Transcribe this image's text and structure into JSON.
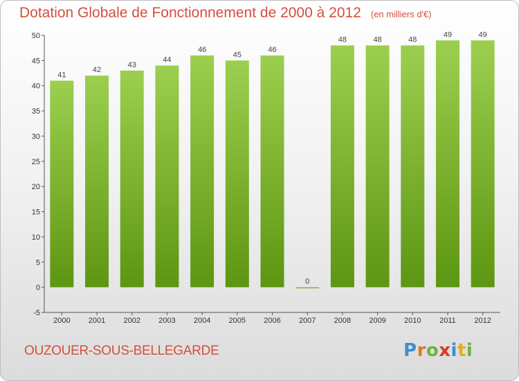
{
  "chart_data": {
    "type": "bar",
    "title": "Dotation Globale de Fonctionnement de 2000 à 2012",
    "subtitle": "(en milliers d'€)",
    "categories": [
      "2000",
      "2001",
      "2002",
      "2003",
      "2004",
      "2005",
      "2006",
      "2007",
      "2008",
      "2009",
      "2010",
      "2011",
      "2012"
    ],
    "values": [
      41,
      42,
      43,
      44,
      46,
      45,
      46,
      0,
      48,
      48,
      48,
      49,
      49
    ],
    "xlabel": "",
    "ylabel": "",
    "ylim": [
      -5,
      50
    ],
    "yticks": [
      -5,
      0,
      5,
      10,
      15,
      20,
      25,
      30,
      35,
      40,
      45,
      50
    ],
    "grid": false,
    "legend": "none",
    "colors": {
      "bar_light": "#9ccf4f",
      "bar_dark": "#5d9612",
      "title": "#d2503c"
    }
  },
  "commune": "OUZOUER-SOUS-BELLEGARDE",
  "logo": {
    "text": "Proxiti",
    "letters": [
      {
        "c": "P",
        "color": "#3e8ed0"
      },
      {
        "c": "r",
        "color": "#e0762c"
      },
      {
        "c": "o",
        "color": "#6cb33e"
      },
      {
        "c": "x",
        "color": "#d63a2a"
      },
      {
        "c": "i",
        "color": "#3e8ed0"
      },
      {
        "c": "t",
        "color": "#e0b020"
      },
      {
        "c": "i",
        "color": "#6cb33e"
      }
    ]
  }
}
